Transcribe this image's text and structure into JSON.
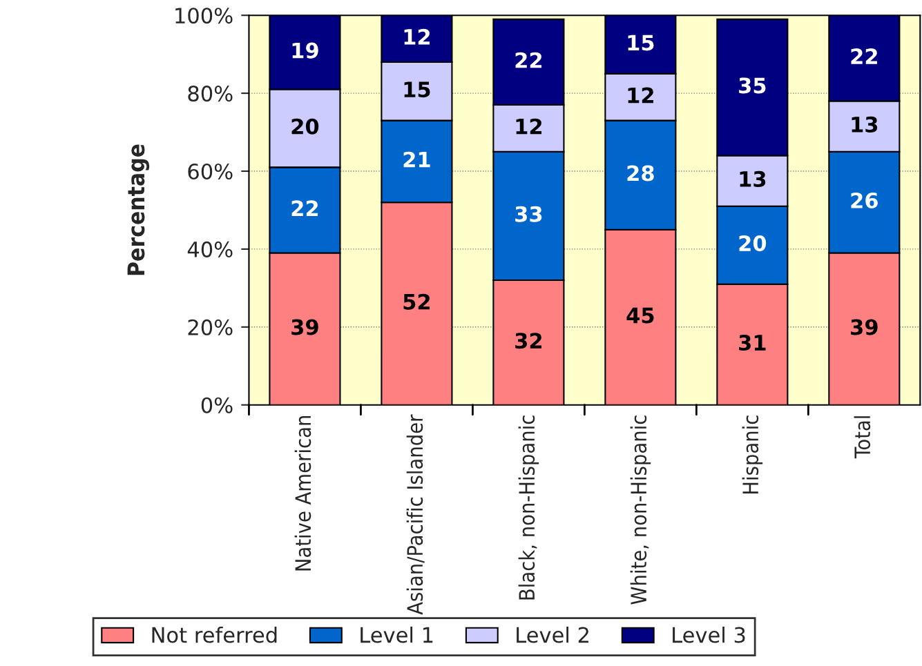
{
  "chart_data": {
    "type": "bar",
    "stacked": true,
    "ylabel": "Percentage",
    "categories": [
      "Native American",
      "Asian/Pacific Islander",
      "Black, non-Hispanic",
      "White, non-Hispanic",
      "Hispanic",
      "Total"
    ],
    "series": [
      {
        "name": "Not referred",
        "color": "#ff8080",
        "values": [
          39,
          52,
          32,
          45,
          31,
          39
        ]
      },
      {
        "name": "Level 1",
        "color": "#0066cc",
        "values": [
          22,
          21,
          33,
          28,
          20,
          26
        ]
      },
      {
        "name": "Level 2",
        "color": "#ccccff",
        "values": [
          20,
          15,
          12,
          12,
          13,
          13
        ]
      },
      {
        "name": "Level 3",
        "color": "#000080",
        "values": [
          19,
          12,
          22,
          15,
          35,
          22
        ]
      }
    ],
    "ylim": [
      0,
      100
    ],
    "yticks": [
      {
        "value": 0,
        "label": "0%"
      },
      {
        "value": 20,
        "label": "20%"
      },
      {
        "value": 40,
        "label": "40%"
      },
      {
        "value": 60,
        "label": "60%"
      },
      {
        "value": 80,
        "label": "80%"
      },
      {
        "value": 100,
        "label": "100%"
      }
    ],
    "grid": "y",
    "legend": "bottom",
    "data_labels": true
  }
}
